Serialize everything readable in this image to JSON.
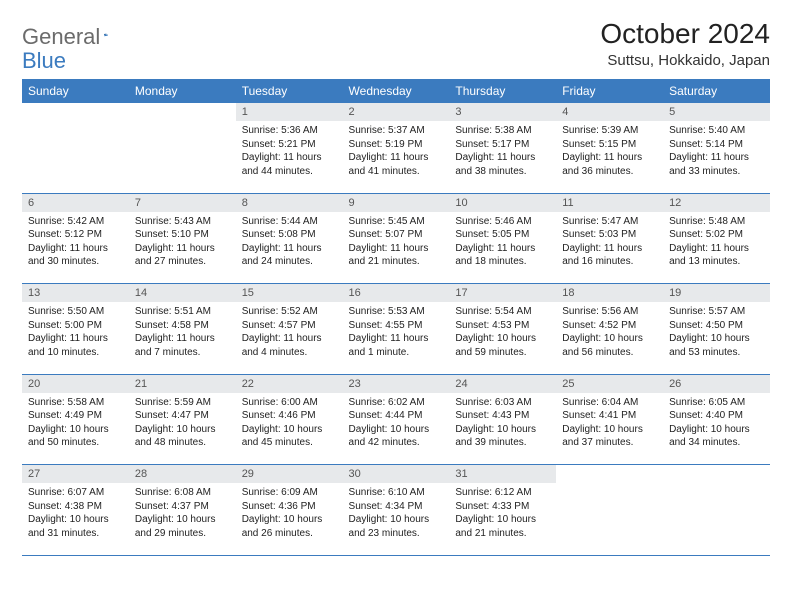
{
  "logo": {
    "text1": "General",
    "text2": "Blue"
  },
  "title": "October 2024",
  "location": "Suttsu, Hokkaido, Japan",
  "colors": {
    "header_bg": "#3b7bbf",
    "header_text": "#ffffff",
    "daynum_bg": "#e7e9eb",
    "daynum_text": "#555555",
    "rule": "#3b7bbf",
    "body_text": "#222222",
    "logo_gray": "#6b6b6b",
    "logo_blue": "#3b7bbf",
    "background": "#ffffff"
  },
  "typography": {
    "title_fontsize": 28,
    "location_fontsize": 15,
    "weekday_fontsize": 12,
    "daynum_fontsize": 11,
    "cell_fontsize": 10,
    "font_family": "Arial"
  },
  "weekdays": [
    "Sunday",
    "Monday",
    "Tuesday",
    "Wednesday",
    "Thursday",
    "Friday",
    "Saturday"
  ],
  "weeks": [
    [
      null,
      null,
      {
        "n": "1",
        "sunrise": "5:36 AM",
        "sunset": "5:21 PM",
        "daylight": "11 hours and 44 minutes."
      },
      {
        "n": "2",
        "sunrise": "5:37 AM",
        "sunset": "5:19 PM",
        "daylight": "11 hours and 41 minutes."
      },
      {
        "n": "3",
        "sunrise": "5:38 AM",
        "sunset": "5:17 PM",
        "daylight": "11 hours and 38 minutes."
      },
      {
        "n": "4",
        "sunrise": "5:39 AM",
        "sunset": "5:15 PM",
        "daylight": "11 hours and 36 minutes."
      },
      {
        "n": "5",
        "sunrise": "5:40 AM",
        "sunset": "5:14 PM",
        "daylight": "11 hours and 33 minutes."
      }
    ],
    [
      {
        "n": "6",
        "sunrise": "5:42 AM",
        "sunset": "5:12 PM",
        "daylight": "11 hours and 30 minutes."
      },
      {
        "n": "7",
        "sunrise": "5:43 AM",
        "sunset": "5:10 PM",
        "daylight": "11 hours and 27 minutes."
      },
      {
        "n": "8",
        "sunrise": "5:44 AM",
        "sunset": "5:08 PM",
        "daylight": "11 hours and 24 minutes."
      },
      {
        "n": "9",
        "sunrise": "5:45 AM",
        "sunset": "5:07 PM",
        "daylight": "11 hours and 21 minutes."
      },
      {
        "n": "10",
        "sunrise": "5:46 AM",
        "sunset": "5:05 PM",
        "daylight": "11 hours and 18 minutes."
      },
      {
        "n": "11",
        "sunrise": "5:47 AM",
        "sunset": "5:03 PM",
        "daylight": "11 hours and 16 minutes."
      },
      {
        "n": "12",
        "sunrise": "5:48 AM",
        "sunset": "5:02 PM",
        "daylight": "11 hours and 13 minutes."
      }
    ],
    [
      {
        "n": "13",
        "sunrise": "5:50 AM",
        "sunset": "5:00 PM",
        "daylight": "11 hours and 10 minutes."
      },
      {
        "n": "14",
        "sunrise": "5:51 AM",
        "sunset": "4:58 PM",
        "daylight": "11 hours and 7 minutes."
      },
      {
        "n": "15",
        "sunrise": "5:52 AM",
        "sunset": "4:57 PM",
        "daylight": "11 hours and 4 minutes."
      },
      {
        "n": "16",
        "sunrise": "5:53 AM",
        "sunset": "4:55 PM",
        "daylight": "11 hours and 1 minute."
      },
      {
        "n": "17",
        "sunrise": "5:54 AM",
        "sunset": "4:53 PM",
        "daylight": "10 hours and 59 minutes."
      },
      {
        "n": "18",
        "sunrise": "5:56 AM",
        "sunset": "4:52 PM",
        "daylight": "10 hours and 56 minutes."
      },
      {
        "n": "19",
        "sunrise": "5:57 AM",
        "sunset": "4:50 PM",
        "daylight": "10 hours and 53 minutes."
      }
    ],
    [
      {
        "n": "20",
        "sunrise": "5:58 AM",
        "sunset": "4:49 PM",
        "daylight": "10 hours and 50 minutes."
      },
      {
        "n": "21",
        "sunrise": "5:59 AM",
        "sunset": "4:47 PM",
        "daylight": "10 hours and 48 minutes."
      },
      {
        "n": "22",
        "sunrise": "6:00 AM",
        "sunset": "4:46 PM",
        "daylight": "10 hours and 45 minutes."
      },
      {
        "n": "23",
        "sunrise": "6:02 AM",
        "sunset": "4:44 PM",
        "daylight": "10 hours and 42 minutes."
      },
      {
        "n": "24",
        "sunrise": "6:03 AM",
        "sunset": "4:43 PM",
        "daylight": "10 hours and 39 minutes."
      },
      {
        "n": "25",
        "sunrise": "6:04 AM",
        "sunset": "4:41 PM",
        "daylight": "10 hours and 37 minutes."
      },
      {
        "n": "26",
        "sunrise": "6:05 AM",
        "sunset": "4:40 PM",
        "daylight": "10 hours and 34 minutes."
      }
    ],
    [
      {
        "n": "27",
        "sunrise": "6:07 AM",
        "sunset": "4:38 PM",
        "daylight": "10 hours and 31 minutes."
      },
      {
        "n": "28",
        "sunrise": "6:08 AM",
        "sunset": "4:37 PM",
        "daylight": "10 hours and 29 minutes."
      },
      {
        "n": "29",
        "sunrise": "6:09 AM",
        "sunset": "4:36 PM",
        "daylight": "10 hours and 26 minutes."
      },
      {
        "n": "30",
        "sunrise": "6:10 AM",
        "sunset": "4:34 PM",
        "daylight": "10 hours and 23 minutes."
      },
      {
        "n": "31",
        "sunrise": "6:12 AM",
        "sunset": "4:33 PM",
        "daylight": "10 hours and 21 minutes."
      },
      null,
      null
    ]
  ],
  "labels": {
    "sunrise": "Sunrise: ",
    "sunset": "Sunset: ",
    "daylight": "Daylight: "
  }
}
